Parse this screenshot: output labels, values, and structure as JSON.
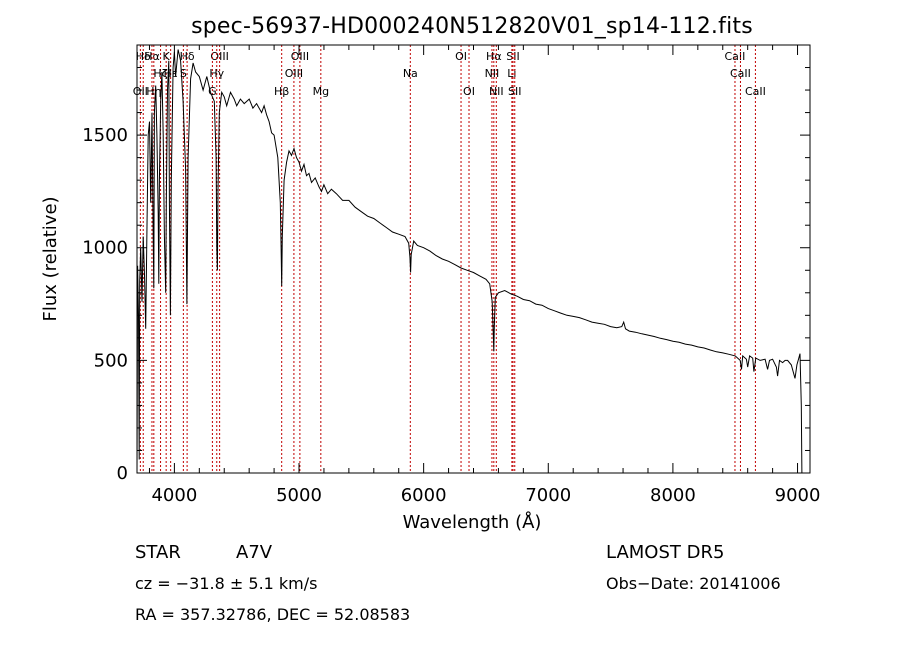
{
  "chart_data": {
    "type": "line",
    "title": "spec-56937-HD000240N512820V01_sp14-112.fits",
    "xlabel": "Wavelength (Å)",
    "ylabel": "Flux (relative)",
    "xlim": [
      3700,
      9100
    ],
    "ylim": [
      0,
      1900
    ],
    "xticks": [
      4000,
      5000,
      6000,
      7000,
      8000,
      9000
    ],
    "xtick_labels": [
      "4000",
      "5000",
      "6000",
      "7000",
      "8000",
      "9000"
    ],
    "yticks": [
      0,
      500,
      1000,
      1500
    ],
    "ytick_labels": [
      "0",
      "500",
      "1000",
      "1500"
    ],
    "grid": false,
    "series": [
      {
        "color": "#000000",
        "points": [
          [
            3700,
            0
          ],
          [
            3705,
            920
          ],
          [
            3712,
            700
          ],
          [
            3718,
            60
          ],
          [
            3722,
            850
          ],
          [
            3730,
            1000
          ],
          [
            3740,
            760
          ],
          [
            3750,
            1050
          ],
          [
            3760,
            880
          ],
          [
            3770,
            640
          ],
          [
            3780,
            1100
          ],
          [
            3790,
            1500
          ],
          [
            3800,
            1560
          ],
          [
            3810,
            1200
          ],
          [
            3820,
            1600
          ],
          [
            3830,
            1050
          ],
          [
            3835,
            820
          ],
          [
            3840,
            1600
          ],
          [
            3850,
            1720
          ],
          [
            3860,
            1500
          ],
          [
            3870,
            1150
          ],
          [
            3875,
            840
          ],
          [
            3880,
            1300
          ],
          [
            3890,
            1650
          ],
          [
            3900,
            1780
          ],
          [
            3910,
            1500
          ],
          [
            3920,
            1050
          ],
          [
            3930,
            800
          ],
          [
            3935,
            1200
          ],
          [
            3945,
            1700
          ],
          [
            3955,
            1830
          ],
          [
            3960,
            1200
          ],
          [
            3968,
            700
          ],
          [
            3975,
            1300
          ],
          [
            3990,
            1800
          ],
          [
            4000,
            1870
          ],
          [
            4010,
            1760
          ],
          [
            4030,
            1880
          ],
          [
            4050,
            1830
          ],
          [
            4070,
            1650
          ],
          [
            4090,
            1350
          ],
          [
            4100,
            750
          ],
          [
            4110,
            1400
          ],
          [
            4130,
            1750
          ],
          [
            4150,
            1820
          ],
          [
            4170,
            1780
          ],
          [
            4200,
            1760
          ],
          [
            4230,
            1700
          ],
          [
            4260,
            1760
          ],
          [
            4290,
            1690
          ],
          [
            4320,
            1650
          ],
          [
            4335,
            1400
          ],
          [
            4340,
            1000
          ],
          [
            4345,
            900
          ],
          [
            4350,
            1250
          ],
          [
            4360,
            1600
          ],
          [
            4380,
            1690
          ],
          [
            4400,
            1670
          ],
          [
            4420,
            1630
          ],
          [
            4450,
            1690
          ],
          [
            4480,
            1660
          ],
          [
            4500,
            1630
          ],
          [
            4530,
            1660
          ],
          [
            4560,
            1640
          ],
          [
            4600,
            1660
          ],
          [
            4630,
            1620
          ],
          [
            4660,
            1640
          ],
          [
            4700,
            1600
          ],
          [
            4720,
            1630
          ],
          [
            4740,
            1590
          ],
          [
            4760,
            1560
          ],
          [
            4780,
            1510
          ],
          [
            4800,
            1500
          ],
          [
            4830,
            1400
          ],
          [
            4850,
            1200
          ],
          [
            4856,
            1000
          ],
          [
            4861,
            830
          ],
          [
            4866,
            1050
          ],
          [
            4880,
            1300
          ],
          [
            4900,
            1380
          ],
          [
            4920,
            1430
          ],
          [
            4940,
            1410
          ],
          [
            4960,
            1440
          ],
          [
            4980,
            1400
          ],
          [
            5000,
            1380
          ],
          [
            5020,
            1340
          ],
          [
            5040,
            1370
          ],
          [
            5060,
            1320
          ],
          [
            5080,
            1330
          ],
          [
            5100,
            1290
          ],
          [
            5130,
            1310
          ],
          [
            5160,
            1270
          ],
          [
            5180,
            1250
          ],
          [
            5200,
            1280
          ],
          [
            5230,
            1240
          ],
          [
            5260,
            1260
          ],
          [
            5300,
            1240
          ],
          [
            5350,
            1210
          ],
          [
            5400,
            1210
          ],
          [
            5450,
            1180
          ],
          [
            5500,
            1160
          ],
          [
            5550,
            1140
          ],
          [
            5600,
            1130
          ],
          [
            5650,
            1110
          ],
          [
            5700,
            1090
          ],
          [
            5750,
            1070
          ],
          [
            5800,
            1060
          ],
          [
            5850,
            1050
          ],
          [
            5880,
            1020
          ],
          [
            5890,
            960
          ],
          [
            5895,
            890
          ],
          [
            5900,
            970
          ],
          [
            5920,
            1030
          ],
          [
            5950,
            1010
          ],
          [
            6000,
            1000
          ],
          [
            6050,
            985
          ],
          [
            6100,
            965
          ],
          [
            6150,
            950
          ],
          [
            6200,
            940
          ],
          [
            6250,
            925
          ],
          [
            6300,
            910
          ],
          [
            6350,
            900
          ],
          [
            6400,
            890
          ],
          [
            6450,
            875
          ],
          [
            6500,
            860
          ],
          [
            6530,
            840
          ],
          [
            6550,
            760
          ],
          [
            6560,
            600
          ],
          [
            6563,
            540
          ],
          [
            6567,
            650
          ],
          [
            6575,
            780
          ],
          [
            6600,
            800
          ],
          [
            6650,
            810
          ],
          [
            6700,
            795
          ],
          [
            6750,
            785
          ],
          [
            6800,
            770
          ],
          [
            6850,
            765
          ],
          [
            6900,
            750
          ],
          [
            6950,
            745
          ],
          [
            7000,
            730
          ],
          [
            7050,
            720
          ],
          [
            7100,
            710
          ],
          [
            7150,
            700
          ],
          [
            7200,
            695
          ],
          [
            7250,
            690
          ],
          [
            7300,
            680
          ],
          [
            7350,
            670
          ],
          [
            7400,
            665
          ],
          [
            7450,
            660
          ],
          [
            7500,
            650
          ],
          [
            7550,
            645
          ],
          [
            7590,
            650
          ],
          [
            7605,
            670
          ],
          [
            7620,
            640
          ],
          [
            7650,
            630
          ],
          [
            7700,
            625
          ],
          [
            7750,
            618
          ],
          [
            7800,
            612
          ],
          [
            7850,
            606
          ],
          [
            7900,
            598
          ],
          [
            7950,
            592
          ],
          [
            8000,
            585
          ],
          [
            8050,
            580
          ],
          [
            8100,
            572
          ],
          [
            8150,
            568
          ],
          [
            8200,
            560
          ],
          [
            8250,
            555
          ],
          [
            8300,
            546
          ],
          [
            8350,
            538
          ],
          [
            8400,
            533
          ],
          [
            8450,
            527
          ],
          [
            8500,
            520
          ],
          [
            8540,
            500
          ],
          [
            8550,
            460
          ],
          [
            8560,
            520
          ],
          [
            8590,
            505
          ],
          [
            8600,
            470
          ],
          [
            8615,
            520
          ],
          [
            8640,
            510
          ],
          [
            8650,
            450
          ],
          [
            8665,
            510
          ],
          [
            8700,
            500
          ],
          [
            8740,
            505
          ],
          [
            8760,
            460
          ],
          [
            8775,
            500
          ],
          [
            8800,
            505
          ],
          [
            8830,
            470
          ],
          [
            8840,
            430
          ],
          [
            8855,
            500
          ],
          [
            8880,
            490
          ],
          [
            8900,
            500
          ],
          [
            8920,
            500
          ],
          [
            8950,
            480
          ],
          [
            8980,
            420
          ],
          [
            8995,
            480
          ],
          [
            9010,
            510
          ],
          [
            9020,
            530
          ],
          [
            9030,
            300
          ],
          [
            9035,
            0
          ]
        ]
      }
    ],
    "line_markers": [
      {
        "label": "Hδ",
        "x": 3750,
        "row": 1
      },
      {
        "label": "Hα",
        "x": 3820,
        "row": 1
      },
      {
        "label": "K",
        "x": 3934,
        "row": 1
      },
      {
        "label": "Hε",
        "x": 3970,
        "row": 2
      },
      {
        "label": "Hζ",
        "x": 3889,
        "row": 2
      },
      {
        "label": "OII",
        "x": 3727,
        "row": 3
      },
      {
        "label": "Hη",
        "x": 3835,
        "row": 3
      },
      {
        "label": "Hδ",
        "x": 4102,
        "row": 1
      },
      {
        "label": "S",
        "x": 4072,
        "row": 2
      },
      {
        "label": "OIII",
        "x": 4363,
        "row": 1
      },
      {
        "label": "Hγ",
        "x": 4340,
        "row": 2
      },
      {
        "label": "G",
        "x": 4305,
        "row": 3
      },
      {
        "label": "Hβ",
        "x": 4861,
        "row": 3
      },
      {
        "label": "OIII",
        "x": 5007,
        "row": 1
      },
      {
        "label": "OIII",
        "x": 4959,
        "row": 2
      },
      {
        "label": "Mg",
        "x": 5175,
        "row": 3
      },
      {
        "label": "Na",
        "x": 5893,
        "row": 2
      },
      {
        "label": "OI",
        "x": 6300,
        "row": 1
      },
      {
        "label": "OI",
        "x": 6364,
        "row": 3
      },
      {
        "label": "Hα",
        "x": 6563,
        "row": 1
      },
      {
        "label": "NII",
        "x": 6548,
        "row": 2
      },
      {
        "label": "NII",
        "x": 6583,
        "row": 3
      },
      {
        "label": "SII",
        "x": 6717,
        "row": 1
      },
      {
        "label": "Li",
        "x": 6708,
        "row": 2
      },
      {
        "label": "SII",
        "x": 6731,
        "row": 3
      },
      {
        "label": "CaII",
        "x": 8498,
        "row": 1
      },
      {
        "label": "CaII",
        "x": 8542,
        "row": 2
      },
      {
        "label": "CaII",
        "x": 8662,
        "row": 3
      }
    ]
  },
  "info": {
    "object_class": "STAR",
    "subclass": "A7V",
    "survey": "LAMOST DR5",
    "cz": "cz = −31.8 ± 5.1 km/s",
    "obs_date": "Obs−Date: 20141006",
    "coords": "RA = 357.32786, DEC =  52.08583"
  }
}
